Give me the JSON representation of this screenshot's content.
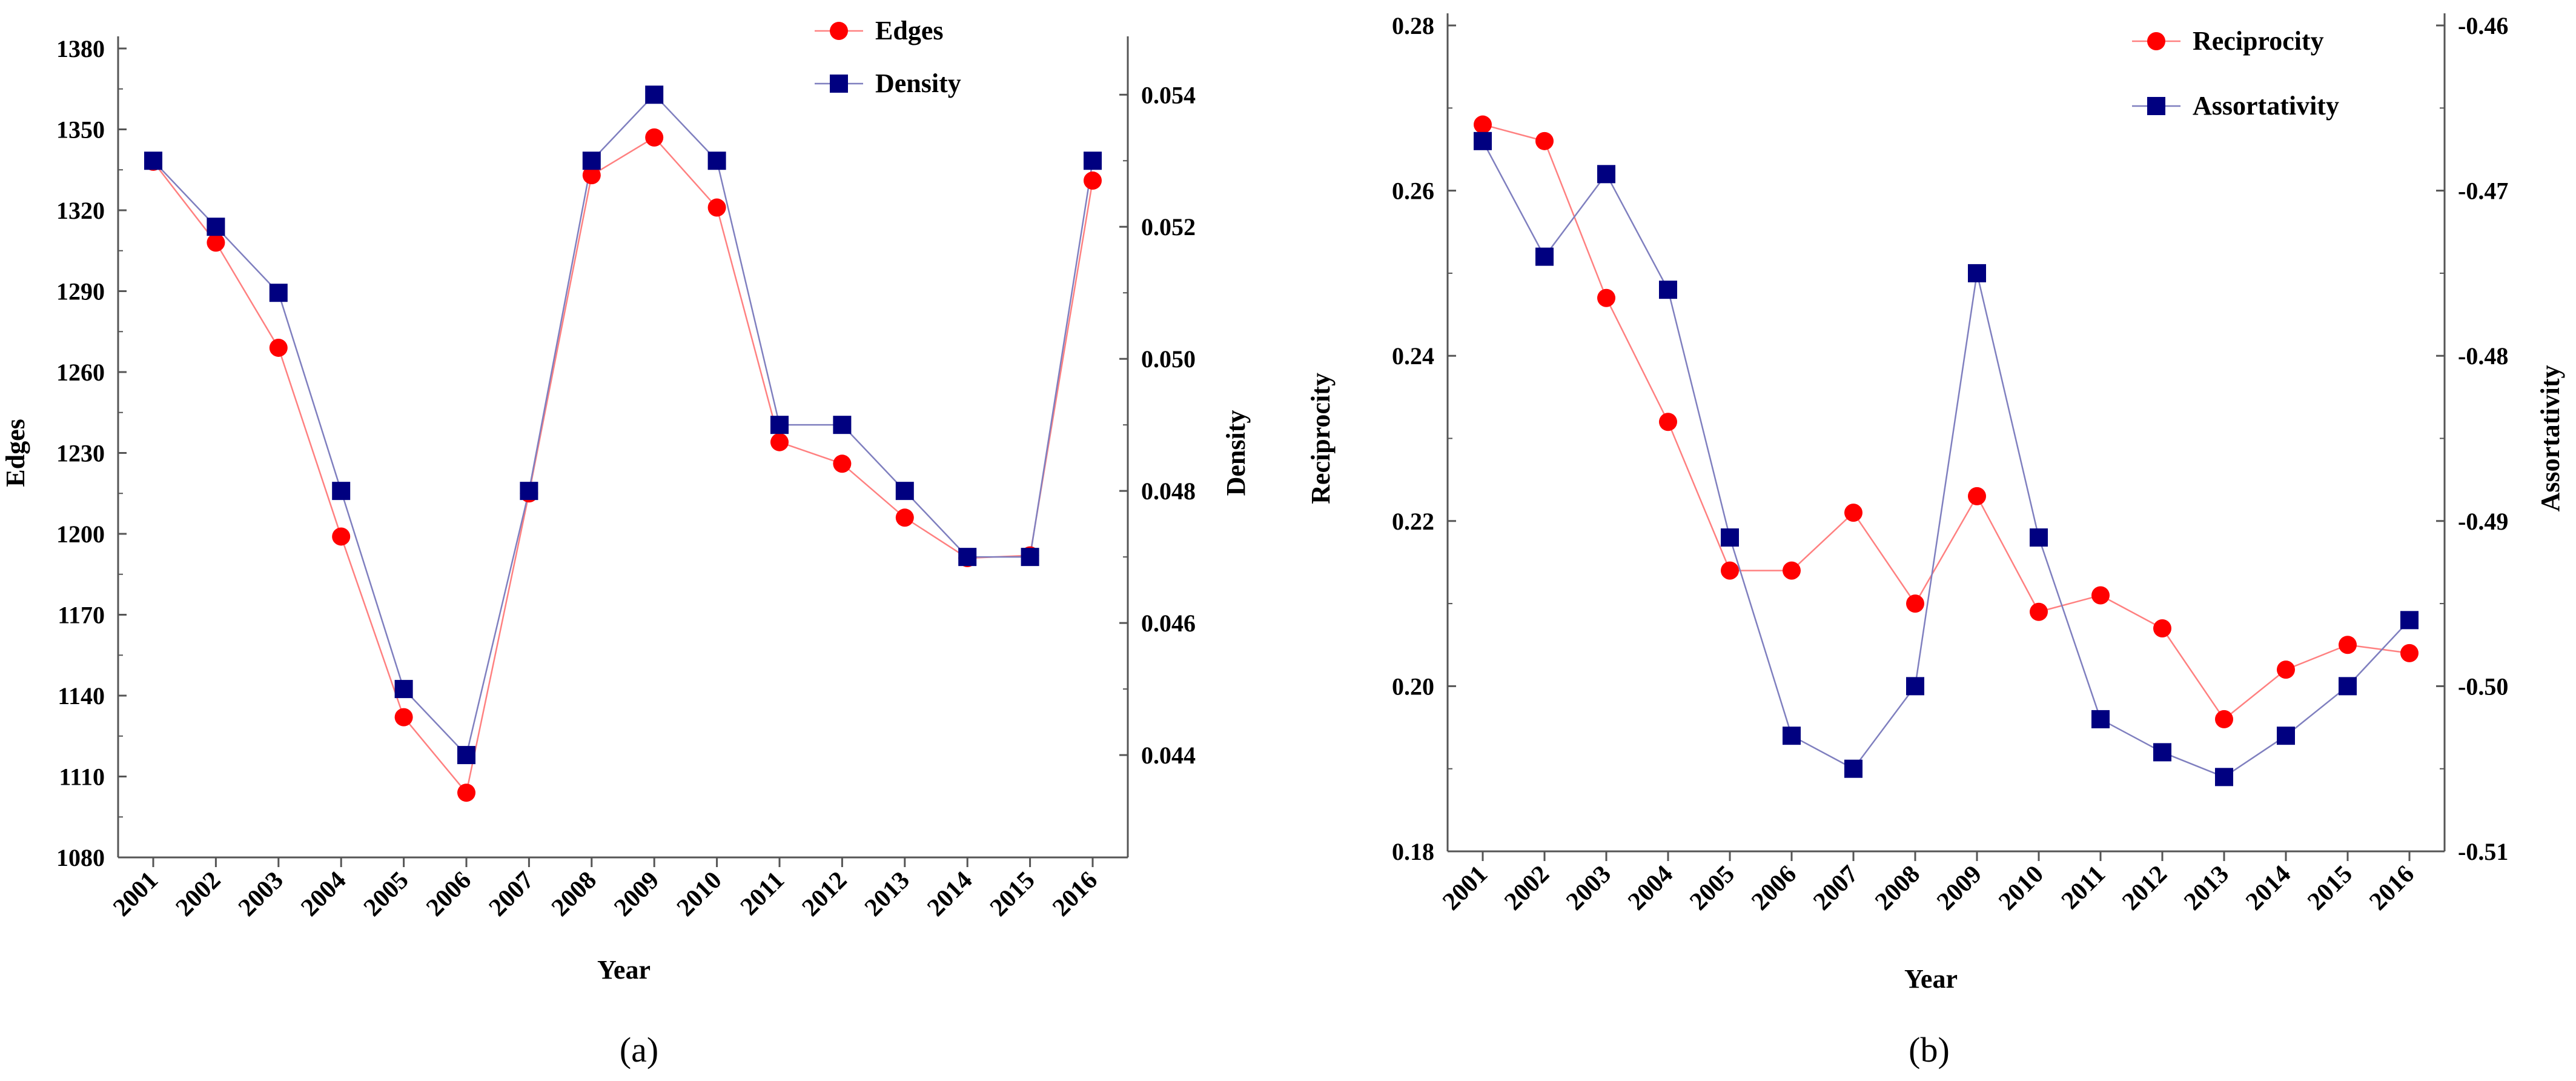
{
  "colors": {
    "series1": "#ff0000",
    "series2": "#000080",
    "series1_line": "#ff8080",
    "series2_line": "#7f7fbf",
    "axis": "#555555"
  },
  "chart_data": [
    {
      "type": "line",
      "caption": "(a)",
      "xlabel": "Year",
      "ylabel_left": "Edges",
      "ylabel_right": "Density",
      "categories": [
        "2001",
        "2002",
        "2003",
        "2004",
        "2005",
        "2006",
        "2007",
        "2008",
        "2009",
        "2010",
        "2011",
        "2012",
        "2013",
        "2014",
        "2015",
        "2016"
      ],
      "left_axis": {
        "min": 1080,
        "max": 1380,
        "ticks": [
          "1080",
          "1110",
          "1140",
          "1170",
          "1200",
          "1230",
          "1260",
          "1290",
          "1320",
          "1350",
          "1380"
        ]
      },
      "right_axis": {
        "min": 0.04245,
        "max": 0.0547,
        "ticks": [
          "0.044",
          "0.046",
          "0.048",
          "0.050",
          "0.052",
          "0.054"
        ]
      },
      "series": [
        {
          "name": "Edges",
          "axis": "left",
          "marker": "circle",
          "values": [
            1338,
            1308,
            1269,
            1199,
            1132,
            1104,
            1215,
            1333,
            1347,
            1321,
            1234,
            1226,
            1206,
            1191,
            1192,
            1331
          ]
        },
        {
          "name": "Density",
          "axis": "right",
          "marker": "square",
          "values": [
            0.053,
            0.052,
            0.051,
            0.048,
            0.045,
            0.044,
            0.048,
            0.053,
            0.054,
            0.053,
            0.049,
            0.049,
            0.048,
            0.047,
            0.047,
            0.053
          ]
        }
      ]
    },
    {
      "type": "line",
      "caption": "(b)",
      "xlabel": "Year",
      "ylabel_left": "Reciprocity",
      "ylabel_right": "Assortativity",
      "categories": [
        "2001",
        "2002",
        "2003",
        "2004",
        "2005",
        "2006",
        "2007",
        "2008",
        "2009",
        "2010",
        "2011",
        "2012",
        "2013",
        "2014",
        "2015",
        "2016"
      ],
      "left_axis": {
        "min": 0.18,
        "max": 0.28,
        "ticks": [
          "0.18",
          "0.20",
          "0.22",
          "0.24",
          "0.26",
          "0.28"
        ]
      },
      "right_axis": {
        "min": -0.51,
        "max": -0.46,
        "ticks": [
          "-0.51",
          "-0.50",
          "-0.49",
          "-0.48",
          "-0.47",
          "-0.46"
        ]
      },
      "series": [
        {
          "name": "Reciprocity",
          "axis": "left",
          "marker": "circle",
          "values": [
            0.268,
            0.266,
            0.247,
            0.232,
            0.214,
            0.214,
            0.221,
            0.21,
            0.223,
            0.209,
            0.211,
            0.207,
            0.196,
            0.202,
            0.205,
            0.204
          ]
        },
        {
          "name": "Assortativity",
          "axis": "right",
          "marker": "square",
          "values": [
            -0.467,
            -0.474,
            -0.469,
            -0.476,
            -0.491,
            -0.503,
            -0.505,
            -0.5,
            -0.475,
            -0.491,
            -0.502,
            -0.504,
            -0.5055,
            -0.503,
            -0.5,
            -0.496
          ]
        }
      ]
    }
  ]
}
